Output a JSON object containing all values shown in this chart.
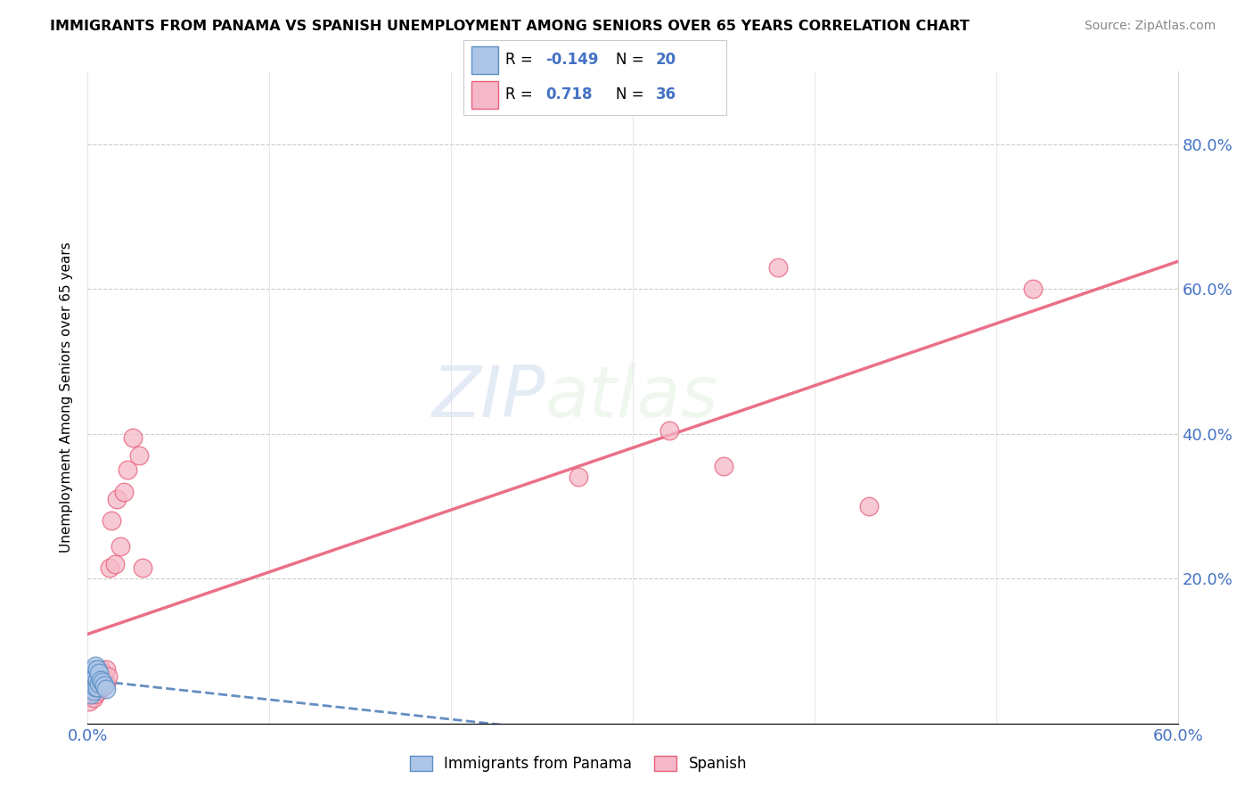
{
  "title": "IMMIGRANTS FROM PANAMA VS SPANISH UNEMPLOYMENT AMONG SENIORS OVER 65 YEARS CORRELATION CHART",
  "source": "Source: ZipAtlas.com",
  "ylabel": "Unemployment Among Seniors over 65 years",
  "xlim": [
    0.0,
    0.6
  ],
  "ylim": [
    0.0,
    0.9
  ],
  "x_tick_pos": [
    0.0,
    0.1,
    0.2,
    0.3,
    0.4,
    0.5,
    0.6
  ],
  "x_tick_labels": [
    "0.0%",
    "",
    "",
    "",
    "",
    "",
    "60.0%"
  ],
  "y_tick_pos": [
    0.0,
    0.2,
    0.4,
    0.6,
    0.8
  ],
  "y_tick_labels_right": [
    "",
    "20.0%",
    "40.0%",
    "60.0%",
    "80.0%"
  ],
  "panama_R": -0.149,
  "panama_N": 20,
  "spanish_R": 0.718,
  "spanish_N": 36,
  "panama_color": "#adc6e8",
  "spanish_color": "#f5b8c8",
  "panama_edge_color": "#5b8ec4",
  "spanish_edge_color": "#e8607a",
  "panama_line_color": "#4a7ab5",
  "spanish_line_color": "#e8607a",
  "watermark_zip": "ZIP",
  "watermark_atlas": "atlas",
  "panama_x": [
    0.001,
    0.001,
    0.002,
    0.002,
    0.002,
    0.003,
    0.003,
    0.003,
    0.004,
    0.004,
    0.004,
    0.005,
    0.005,
    0.005,
    0.006,
    0.006,
    0.007,
    0.008,
    0.009,
    0.01
  ],
  "panama_y": [
    0.05,
    0.06,
    0.04,
    0.055,
    0.07,
    0.045,
    0.06,
    0.075,
    0.05,
    0.065,
    0.08,
    0.05,
    0.06,
    0.075,
    0.055,
    0.07,
    0.06,
    0.058,
    0.052,
    0.048
  ],
  "spanish_x": [
    0.001,
    0.001,
    0.002,
    0.002,
    0.003,
    0.003,
    0.004,
    0.004,
    0.005,
    0.005,
    0.006,
    0.006,
    0.007,
    0.007,
    0.008,
    0.008,
    0.009,
    0.01,
    0.01,
    0.011,
    0.012,
    0.013,
    0.015,
    0.016,
    0.018,
    0.02,
    0.022,
    0.025,
    0.028,
    0.03,
    0.27,
    0.32,
    0.35,
    0.38,
    0.43,
    0.52
  ],
  "spanish_y": [
    0.03,
    0.05,
    0.04,
    0.06,
    0.035,
    0.055,
    0.04,
    0.065,
    0.05,
    0.07,
    0.045,
    0.06,
    0.055,
    0.075,
    0.05,
    0.07,
    0.06,
    0.055,
    0.075,
    0.065,
    0.215,
    0.28,
    0.22,
    0.31,
    0.245,
    0.32,
    0.35,
    0.395,
    0.37,
    0.215,
    0.34,
    0.405,
    0.355,
    0.63,
    0.3,
    0.6
  ]
}
